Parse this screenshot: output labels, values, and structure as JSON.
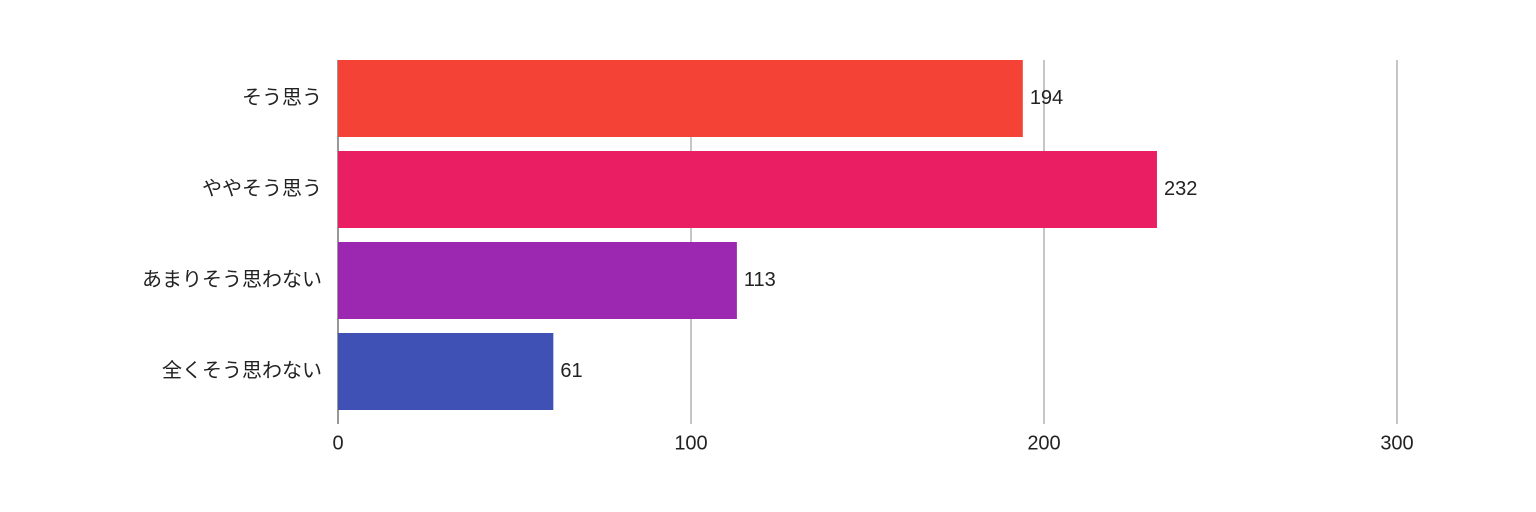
{
  "chart_data": {
    "type": "bar",
    "orientation": "horizontal",
    "categories": [
      "そう思う",
      "ややそう思う",
      "あまりそう思わない",
      "全くそう思わない"
    ],
    "values": [
      194,
      232,
      113,
      61
    ],
    "colors": [
      "#f44336",
      "#e91e63",
      "#9c27b0",
      "#3f51b5"
    ],
    "xlim": [
      0,
      300
    ],
    "xticks": [
      0,
      100,
      200,
      300
    ],
    "grid": true
  }
}
